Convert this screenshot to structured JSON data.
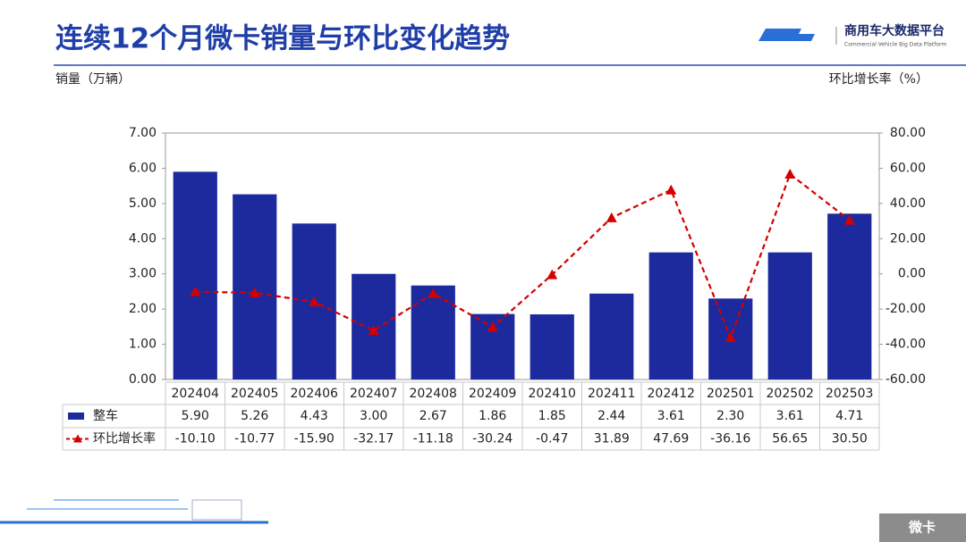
{
  "header": {
    "title": "连续12个月微卡销量与环比变化趋势",
    "logo_text": "商用车大数据平台",
    "logo_subtitle": "Commercial Vehicle Big Data Platform"
  },
  "footer_tag": "微卡",
  "chart_data": {
    "type": "combo",
    "y_label": "销量（万辆）",
    "y2_label": "环比增长率（%）",
    "categories": [
      "202404",
      "202405",
      "202406",
      "202407",
      "202408",
      "202409",
      "202410",
      "202411",
      "202412",
      "202501",
      "202502",
      "202503"
    ],
    "series": [
      {
        "name": "整车",
        "type": "bar",
        "color": "#1c2a9e",
        "values": [
          5.9,
          5.26,
          4.43,
          3.0,
          2.67,
          1.86,
          1.85,
          2.44,
          3.61,
          2.3,
          3.61,
          4.71
        ],
        "value_labels": [
          "5.90",
          "5.26",
          "4.43",
          "3.00",
          "2.67",
          "1.86",
          "1.85",
          "2.44",
          "3.61",
          "2.30",
          "3.61",
          "4.71"
        ]
      },
      {
        "name": "环比增长率",
        "type": "line",
        "axis": "y2",
        "color": "#d40000",
        "values": [
          -10.1,
          -10.77,
          -15.9,
          -32.17,
          -11.18,
          -30.24,
          -0.47,
          31.89,
          47.69,
          -36.16,
          56.65,
          30.5
        ],
        "value_labels": [
          "-10.10",
          "-10.77",
          "-15.90",
          "-32.17",
          "-11.18",
          "-30.24",
          "-0.47",
          "31.89",
          "47.69",
          "-36.16",
          "56.65",
          "30.50"
        ]
      }
    ],
    "ylim": [
      0,
      7
    ],
    "yticks": [
      {
        "value": 0,
        "label": "0.00"
      },
      {
        "value": 1,
        "label": "1.00"
      },
      {
        "value": 2,
        "label": "2.00"
      },
      {
        "value": 3,
        "label": "3.00"
      },
      {
        "value": 4,
        "label": "4.00"
      },
      {
        "value": 5,
        "label": "5.00"
      },
      {
        "value": 6,
        "label": "6.00"
      },
      {
        "value": 7,
        "label": "7.00"
      }
    ],
    "y2lim": [
      -60,
      80
    ],
    "y2ticks": [
      {
        "value": -60,
        "label": "-60.00"
      },
      {
        "value": -40,
        "label": "-40.00"
      },
      {
        "value": -20,
        "label": "-20.00"
      },
      {
        "value": 0,
        "label": "0.00"
      },
      {
        "value": 20,
        "label": "20.00"
      },
      {
        "value": 40,
        "label": "40.00"
      },
      {
        "value": 60,
        "label": "60.00"
      },
      {
        "value": 80,
        "label": "80.00"
      }
    ],
    "grid": false
  }
}
